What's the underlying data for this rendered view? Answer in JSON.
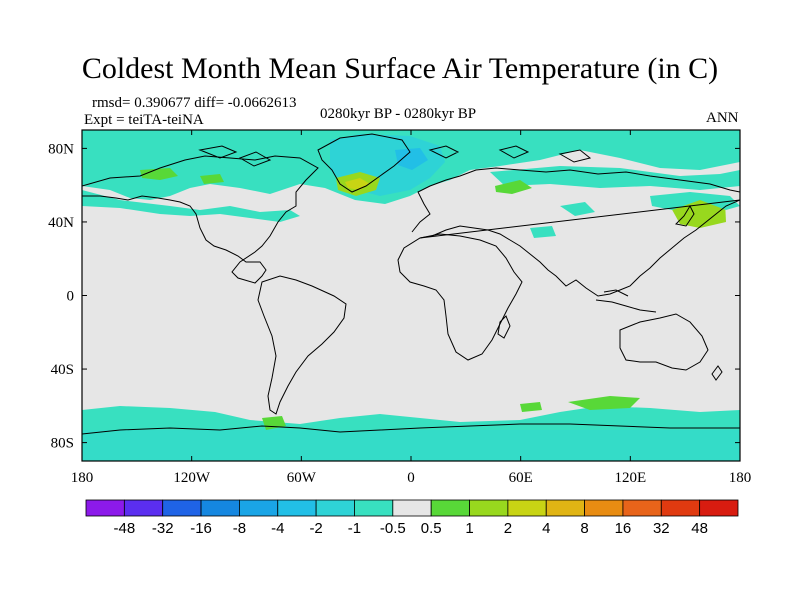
{
  "title": "Coldest Month Mean Surface Air Temperature (in C)",
  "stats": "rmsd= 0.390677 diff= -0.0662613",
  "expt": "Expt = teiTA-teiNA",
  "period": "0280kyr BP - 0280kyr BP",
  "season": "ANN",
  "map": {
    "lat_range": [
      -90,
      90
    ],
    "lon_range": [
      -180,
      180
    ],
    "lat_ticks": [
      "80N",
      "40N",
      "0",
      "40S",
      "80S"
    ],
    "lon_ticks": [
      "180",
      "120W",
      "60W",
      "0",
      "60E",
      "120E",
      "180"
    ],
    "background_color": "#e6e6e6",
    "coastline_color": "#000000"
  },
  "colorbar": {
    "labels": [
      "-48",
      "-32",
      "-16",
      "-8",
      "-4",
      "-2",
      "-1",
      "-0.5",
      "0.5",
      "1",
      "2",
      "4",
      "8",
      "16",
      "32",
      "48"
    ],
    "colors": [
      "#8c1aea",
      "#5b2ef0",
      "#1f63e6",
      "#1587e0",
      "#1aa5e6",
      "#22bfe6",
      "#2ed3d6",
      "#38e0c0",
      "#e6e6e6",
      "#58d838",
      "#98d81e",
      "#c8d414",
      "#e0b414",
      "#e88c12",
      "#e8641a",
      "#e03a10",
      "#d81c10"
    ]
  }
}
